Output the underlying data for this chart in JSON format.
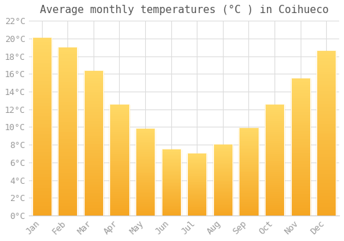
{
  "title": "Average monthly temperatures (°C ) in Coihueco",
  "months": [
    "Jan",
    "Feb",
    "Mar",
    "Apr",
    "May",
    "Jun",
    "Jul",
    "Aug",
    "Sep",
    "Oct",
    "Nov",
    "Dec"
  ],
  "values": [
    20.1,
    19.0,
    16.3,
    12.5,
    9.8,
    7.5,
    7.0,
    8.0,
    9.9,
    12.5,
    15.5,
    18.6
  ],
  "bar_color_bottom": "#F5A623",
  "bar_color_top": "#FFD966",
  "bar_edge_color": "#FFFFFF",
  "ylim": [
    0,
    22
  ],
  "ytick_step": 2,
  "background_color": "#ffffff",
  "grid_color": "#dddddd",
  "title_fontsize": 11,
  "tick_fontsize": 9,
  "tick_color": "#999999",
  "title_color": "#555555"
}
